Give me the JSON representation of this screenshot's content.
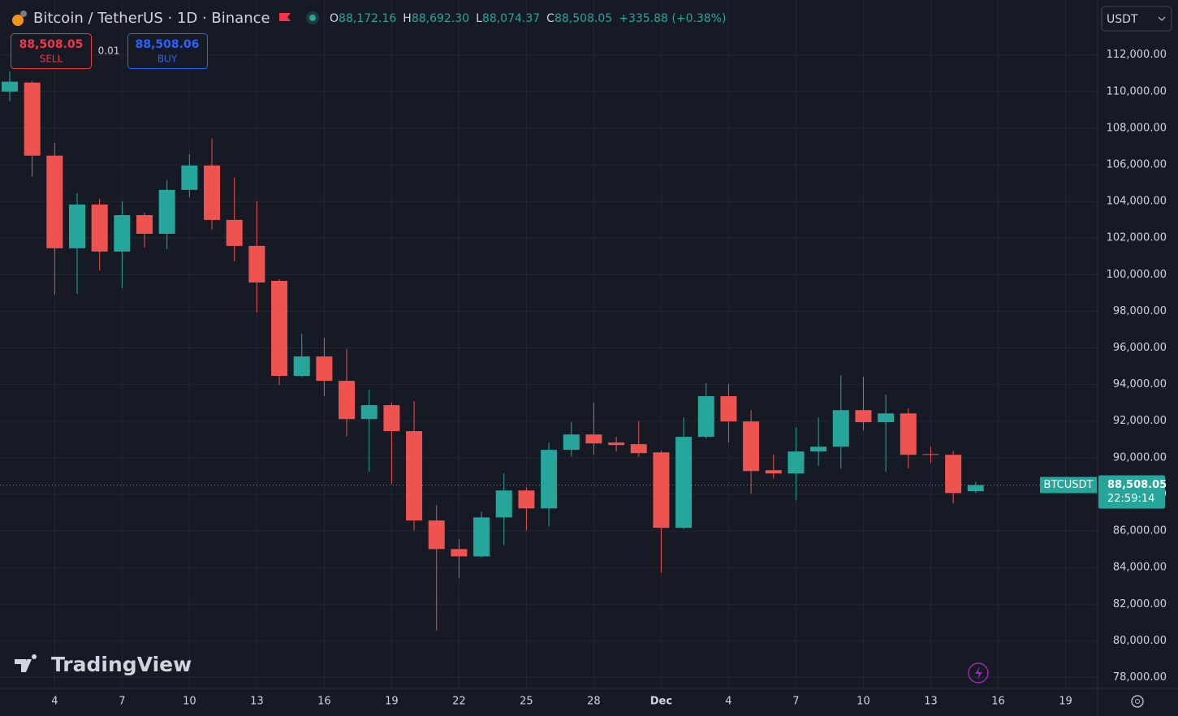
{
  "header": {
    "symbol": "Bitcoin / TetherUS · 1D · Binance",
    "ohlc": [
      {
        "label": "O",
        "value": "88,172.16"
      },
      {
        "label": "H",
        "value": "88,692.30"
      },
      {
        "label": "L",
        "value": "88,074.37"
      },
      {
        "label": "C",
        "value": "88,508.05"
      }
    ],
    "change": "+335.88 (+0.38%)",
    "currency": "USDT"
  },
  "trade": {
    "sell_price": "88,508.05",
    "sell": "SELL",
    "quantity": "0.01",
    "buy_price": "88,508.06",
    "buy": "BUY"
  },
  "price_label": {
    "symbol": "BTCUSDT",
    "price": "88,508.05",
    "countdown": "22:59:14"
  },
  "logo": "TradingView",
  "chart_data": {
    "type": "candlestick",
    "categories": [
      null,
      null,
      "4",
      null,
      null,
      "7",
      null,
      null,
      "10",
      null,
      null,
      "13",
      null,
      null,
      "16",
      null,
      null,
      "19",
      null,
      null,
      "22",
      null,
      null,
      "25",
      null,
      null,
      "28",
      null,
      null,
      "Dec",
      null,
      null,
      "4",
      null,
      null,
      "7",
      null,
      null,
      "10",
      null,
      null,
      "13",
      null,
      null,
      "16",
      null,
      null,
      "19"
    ],
    "open": [
      110000,
      110490,
      106500,
      101440,
      103830,
      101260,
      103250,
      102230,
      104630,
      105960,
      102990,
      101570,
      99660,
      94470,
      95530,
      94200,
      92110,
      92870,
      91450,
      86570,
      85010,
      84610,
      86740,
      88210,
      87230,
      90430,
      91270,
      90830,
      90740,
      90290,
      86170,
      91140,
      93360,
      91980,
      89320,
      89140,
      90340,
      90600,
      92600,
      91940,
      92420,
      90200,
      90160,
      88172.16,
      null,
      null,
      null,
      null
    ],
    "high": [
      111100,
      110580,
      107210,
      104450,
      104140,
      104010,
      103390,
      105160,
      106580,
      107430,
      105300,
      104010,
      99750,
      96770,
      96550,
      95930,
      93710,
      93000,
      93090,
      87410,
      85540,
      87050,
      89140,
      88380,
      90830,
      91940,
      93000,
      91140,
      91980,
      90380,
      92200,
      94070,
      94020,
      92600,
      90160,
      91670,
      92200,
      94510,
      94420,
      93450,
      92690,
      90600,
      90380,
      88692.3,
      null,
      null,
      null,
      null
    ],
    "low": [
      109470,
      105340,
      98910,
      98950,
      100240,
      99260,
      101480,
      101390,
      104230,
      102460,
      100730,
      97930,
      93980,
      94400,
      93360,
      91180,
      89230,
      88560,
      86030,
      80570,
      83410,
      84550,
      85230,
      86030,
      86250,
      90070,
      90160,
      90340,
      90070,
      83720,
      86100,
      91050,
      90830,
      88030,
      88870,
      87670,
      89540,
      89410,
      91490,
      89230,
      89410,
      89720,
      87500,
      88074.37,
      null,
      null,
      null,
      null
    ],
    "close": [
      110540,
      106500,
      101440,
      103830,
      101260,
      103250,
      102230,
      104630,
      105960,
      102990,
      101570,
      99570,
      94470,
      95530,
      94200,
      92110,
      92870,
      91450,
      86570,
      85010,
      84610,
      86740,
      88210,
      87230,
      90430,
      91270,
      90780,
      90690,
      90250,
      86170,
      91140,
      93360,
      91980,
      89270,
      89140,
      90340,
      90600,
      92600,
      91940,
      92420,
      90160,
      90160,
      88070,
      88508.05,
      null,
      null,
      null,
      null
    ],
    "up_color": "#26a69a",
    "down_color": "#ef5350",
    "ylim": [
      77400,
      115000
    ],
    "yticks": [
      {
        "value": 78000,
        "label": "78,000.00"
      },
      {
        "value": 80000,
        "label": "80,000.00"
      },
      {
        "value": 82000,
        "label": "82,000.00"
      },
      {
        "value": 84000,
        "label": "84,000.00"
      },
      {
        "value": 86000,
        "label": "86,000.00"
      },
      {
        "value": 88000,
        "label": "88,000.00"
      },
      {
        "value": 90000,
        "label": "90,000.00"
      },
      {
        "value": 92000,
        "label": "92,000.00"
      },
      {
        "value": 94000,
        "label": "94,000.00"
      },
      {
        "value": 96000,
        "label": "96,000.00"
      },
      {
        "value": 98000,
        "label": "98,000.00"
      },
      {
        "value": 100000,
        "label": "100,000.00"
      },
      {
        "value": 102000,
        "label": "102,000.00"
      },
      {
        "value": 104000,
        "label": "104,000.00"
      },
      {
        "value": 106000,
        "label": "106,000.00"
      },
      {
        "value": 108000,
        "label": "108,000.00"
      },
      {
        "value": 110000,
        "label": "110,000.00"
      },
      {
        "value": 112000,
        "label": "112,000.00"
      }
    ],
    "grid": true
  }
}
